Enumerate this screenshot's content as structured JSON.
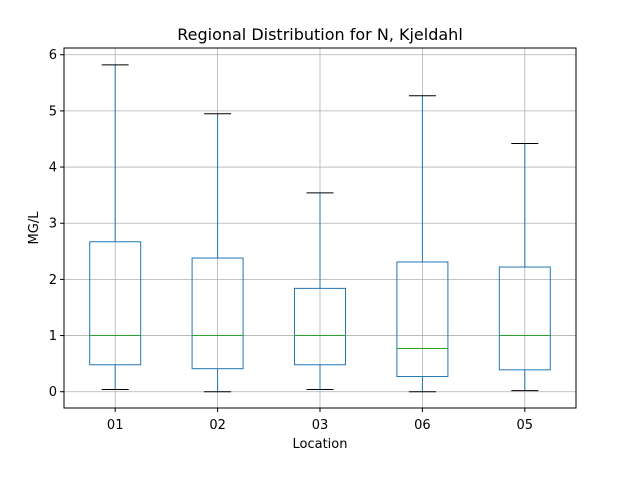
{
  "chart_data": {
    "type": "box",
    "title": "Regional Distribution for N, Kjeldahl",
    "xlabel": "Location",
    "ylabel": "MG/L",
    "categories": [
      "01",
      "02",
      "03",
      "06",
      "05"
    ],
    "ylim": [
      -0.29,
      6.12
    ],
    "yticks": [
      0,
      1,
      2,
      3,
      4,
      5,
      6
    ],
    "grid": true,
    "boxes": [
      {
        "whisker_low": 0.04,
        "q1": 0.48,
        "median": 1.0,
        "q3": 2.67,
        "whisker_high": 5.82
      },
      {
        "whisker_low": 0.0,
        "q1": 0.41,
        "median": 1.0,
        "q3": 2.38,
        "whisker_high": 4.95
      },
      {
        "whisker_low": 0.04,
        "q1": 0.48,
        "median": 1.0,
        "q3": 1.84,
        "whisker_high": 3.54
      },
      {
        "whisker_low": 0.0,
        "q1": 0.27,
        "median": 0.77,
        "q3": 2.31,
        "whisker_high": 5.27
      },
      {
        "whisker_low": 0.02,
        "q1": 0.39,
        "median": 1.0,
        "q3": 2.22,
        "whisker_high": 4.42
      }
    ],
    "colors": {
      "box": "#1f77b4",
      "median": "#2ca02c",
      "whisker_cap": "#000000",
      "grid": "#b0b0b0"
    }
  }
}
